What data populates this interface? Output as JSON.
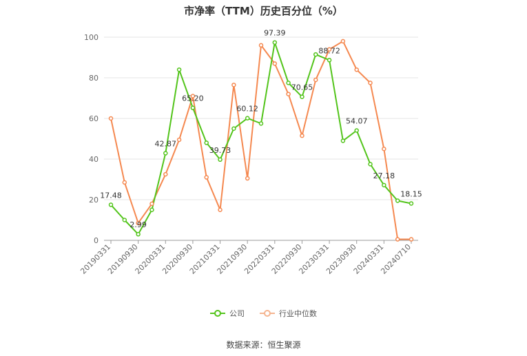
{
  "chart_data": {
    "type": "line",
    "title": "市净率（TTM）历史百分位（%）",
    "xlabel": "",
    "ylabel": "",
    "ylim": [
      0,
      100
    ],
    "yticks": [
      0,
      20,
      40,
      60,
      80,
      100
    ],
    "grid": true,
    "legend_position": "bottom",
    "x_tick_labels": [
      "20190331",
      "20190930",
      "20200331",
      "20200930",
      "20210331",
      "20210930",
      "20220331",
      "20220930",
      "20230331",
      "20230930",
      "20240331",
      "20240710"
    ],
    "series": [
      {
        "name": "公司",
        "color": "#52c41a",
        "values": [
          17.48,
          10,
          2.99,
          15,
          42.87,
          84,
          65.2,
          48,
          39.73,
          55,
          60.12,
          57.5,
          97.39,
          77.5,
          70.65,
          91.5,
          88.72,
          49,
          54.07,
          37.5,
          27.18,
          19.5,
          18.15
        ],
        "data_labels": [
          {
            "index": 0,
            "text": "17.48"
          },
          {
            "index": 2,
            "text": "2.99"
          },
          {
            "index": 4,
            "text": "42.87"
          },
          {
            "index": 6,
            "text": "65.20"
          },
          {
            "index": 8,
            "text": "39.73"
          },
          {
            "index": 10,
            "text": "60.12"
          },
          {
            "index": 12,
            "text": "97.39"
          },
          {
            "index": 14,
            "text": "70.65"
          },
          {
            "index": 16,
            "text": "88.72"
          },
          {
            "index": 18,
            "text": "54.07"
          },
          {
            "index": 20,
            "text": "27.18"
          },
          {
            "index": 22,
            "text": "18.15"
          }
        ]
      },
      {
        "name": "行业中位数",
        "color": "#f5884f",
        "values": [
          60,
          28.5,
          8.5,
          18,
          32.5,
          49.5,
          71,
          31,
          15,
          76.5,
          30.5,
          96,
          87,
          72,
          51.5,
          79,
          94,
          98,
          84,
          77.5,
          45,
          0.5,
          0.5
        ]
      }
    ]
  },
  "source": "数据来源：恒生聚源"
}
